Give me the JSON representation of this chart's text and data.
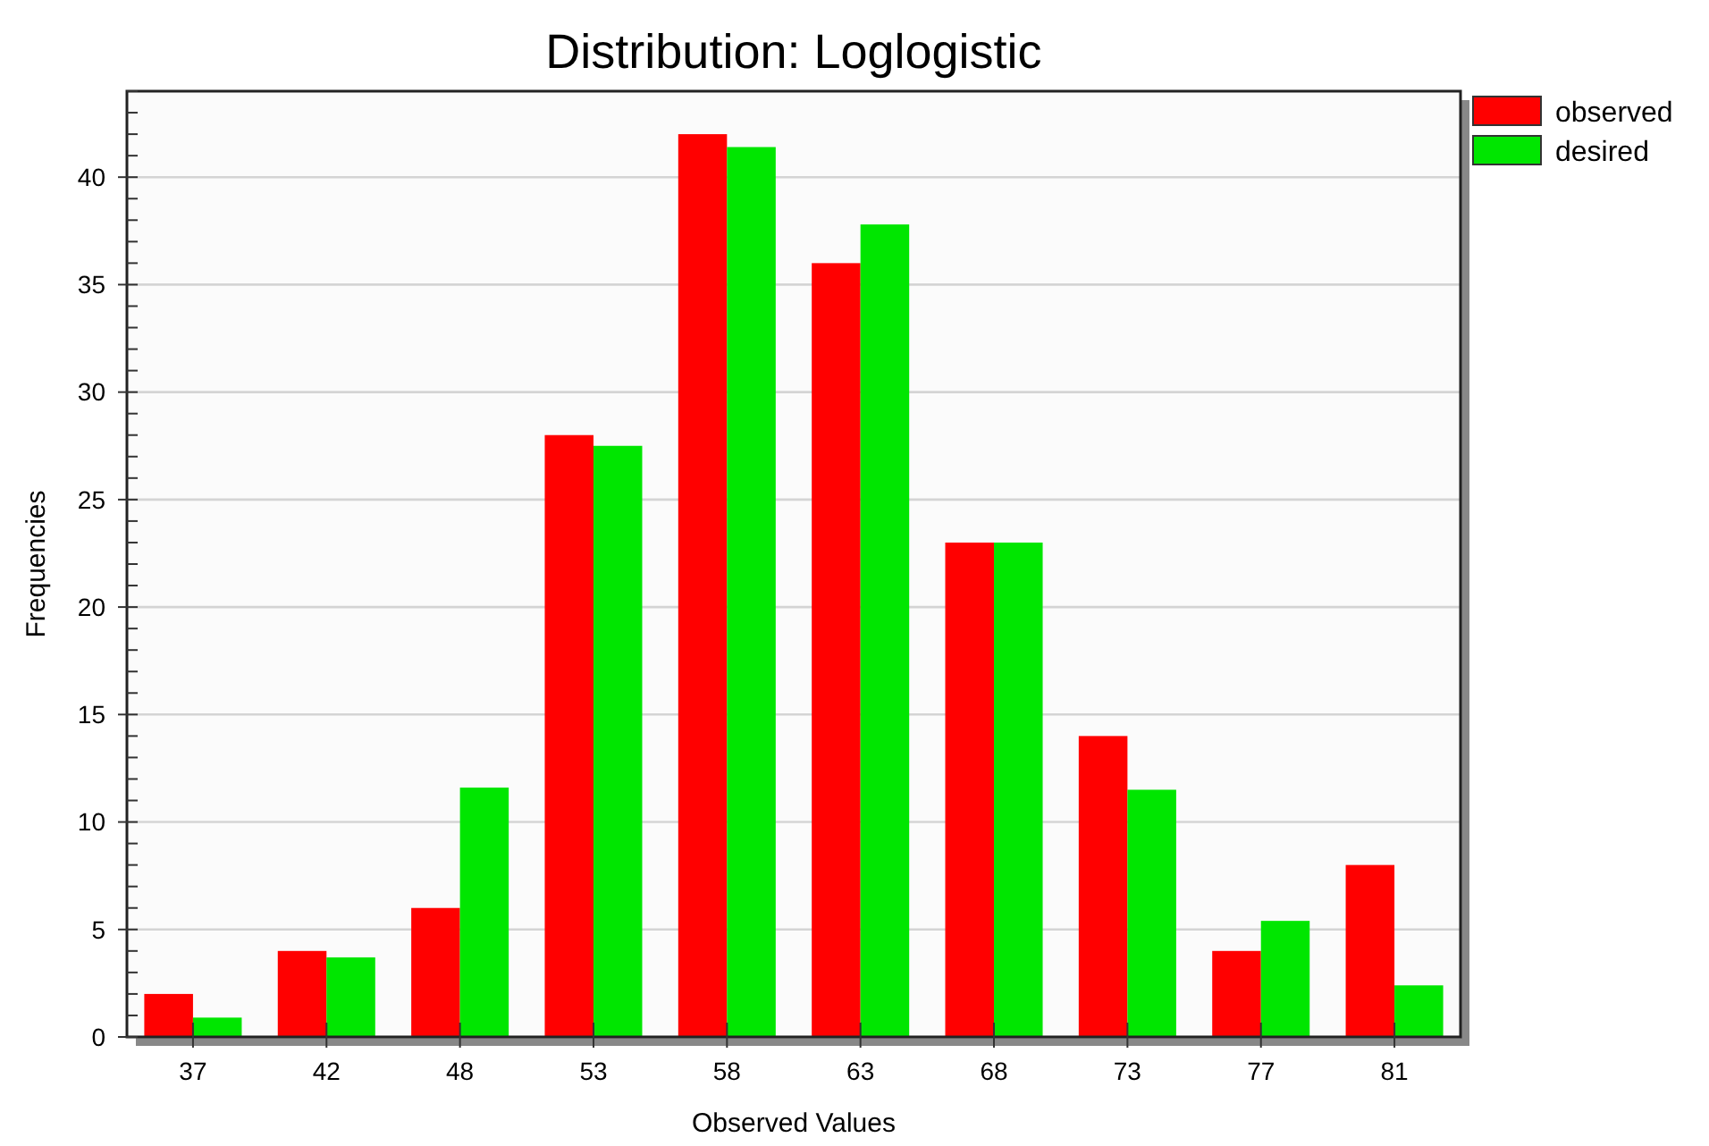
{
  "chart_data": {
    "type": "bar",
    "title": "Distribution: Loglogistic",
    "xlabel": "Observed Values",
    "ylabel": "Frequencies",
    "categories": [
      "37",
      "42",
      "48",
      "53",
      "58",
      "63",
      "68",
      "73",
      "77",
      "81"
    ],
    "series": [
      {
        "name": "observed",
        "color": "#ff0000",
        "values": [
          2,
          4,
          6,
          28,
          42,
          36,
          23,
          14,
          4,
          8
        ]
      },
      {
        "name": "desired",
        "color": "#00e600",
        "values": [
          0.9,
          3.7,
          11.6,
          27.5,
          41.4,
          37.8,
          23,
          11.5,
          5.4,
          2.4
        ]
      }
    ],
    "ylim": [
      0,
      44
    ],
    "yticks": [
      0,
      {
        "value": 1,
        "label": null
      },
      {
        "value": 2,
        "label": null
      },
      {
        "value": 3,
        "label": null
      },
      {
        "value": 4,
        "label": null
      },
      5,
      {
        "value": 6,
        "label": null
      },
      {
        "value": 7,
        "label": null
      },
      {
        "value": 8,
        "label": null
      },
      {
        "value": 9,
        "label": null
      },
      10,
      {
        "value": 11,
        "label": null
      },
      {
        "value": 12,
        "label": null
      },
      {
        "value": 13,
        "label": null
      },
      {
        "value": 14,
        "label": null
      },
      15,
      {
        "value": 16,
        "label": null
      },
      {
        "value": 17,
        "label": null
      },
      {
        "value": 18,
        "label": null
      },
      {
        "value": 19,
        "label": null
      },
      20,
      {
        "value": 21,
        "label": null
      },
      {
        "value": 22,
        "label": null
      },
      {
        "value": 23,
        "label": null
      },
      {
        "value": 24,
        "label": null
      },
      25,
      {
        "value": 26,
        "label": null
      },
      {
        "value": 27,
        "label": null
      },
      {
        "value": 28,
        "label": null
      },
      {
        "value": 29,
        "label": null
      },
      30,
      {
        "value": 31,
        "label": null
      },
      {
        "value": 32,
        "label": null
      },
      {
        "value": 33,
        "label": null
      },
      {
        "value": 34,
        "label": null
      },
      35,
      {
        "value": 36,
        "label": null
      },
      {
        "value": 37,
        "label": null
      },
      {
        "value": 38,
        "label": null
      },
      {
        "value": 39,
        "label": null
      },
      40,
      {
        "value": 41,
        "label": null
      },
      {
        "value": 42,
        "label": null
      },
      {
        "value": 43,
        "label": null
      },
      {
        "value": 44,
        "label": null
      }
    ],
    "grid": "y",
    "legend": "top right"
  }
}
